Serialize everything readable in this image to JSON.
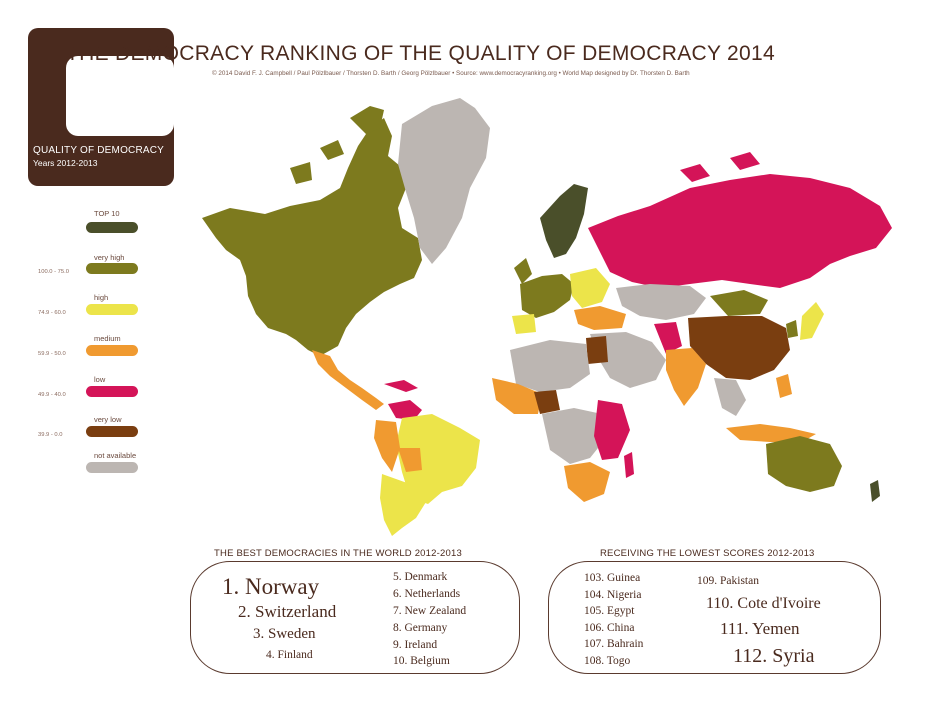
{
  "header": {
    "title": "THE DEMOCRACY RANKING OF THE QUALITY OF DEMOCRACY 2014",
    "credits": "© 2014 David F. J. Campbell / Paul Pölzlbauer / Thorsten D. Barth / Georg Pölzlbauer • Source: www.democracyranking.org • World Map designed by Dr. Thorsten D. Barth"
  },
  "badge": {
    "title": "QUALITY OF DEMOCRACY",
    "years": "Years 2012-2013"
  },
  "legend": {
    "items": [
      {
        "label": "TOP 10",
        "range": "",
        "color": "#4a4f2a"
      },
      {
        "label": "very high",
        "range": "100.0 - 75.0",
        "color": "#7d7a1e"
      },
      {
        "label": "high",
        "range": "74.9 - 60.0",
        "color": "#ece44a"
      },
      {
        "label": "medium",
        "range": "59.9 - 50.0",
        "color": "#f09a30"
      },
      {
        "label": "low",
        "range": "49.9 - 40.0",
        "color": "#d41458"
      },
      {
        "label": "very low",
        "range": "39.9 - 0.0",
        "color": "#7a3e10"
      },
      {
        "label": "not available",
        "range": "",
        "color": "#bcb6b2"
      }
    ]
  },
  "best": {
    "title": "THE BEST DEMOCRACIES IN THE WORLD 2012-2013",
    "ranks": [
      "1. Norway",
      "2. Switzerland",
      "3. Sweden",
      "4. Finland",
      "5. Denmark",
      "6. Netherlands",
      "7. New Zealand",
      "8. Germany",
      "9. Ireland",
      "10. Belgium"
    ]
  },
  "lowest": {
    "title": "RECEIVING THE LOWEST SCORES 2012-2013",
    "ranks": [
      "103. Guinea",
      "104. Nigeria",
      "105. Egypt",
      "106. China",
      "107. Bahrain",
      "108. Togo",
      "109. Pakistan",
      "110. Cote d'Ivoire",
      "111. Yemen",
      "112. Syria"
    ]
  },
  "colors": {
    "brown": "#4a2a1e",
    "top10": "#4a4f2a",
    "very_high": "#7d7a1e",
    "high": "#ece44a",
    "medium": "#f09a30",
    "low": "#d41458",
    "very_low": "#7a3e10",
    "na": "#bcb6b2"
  }
}
